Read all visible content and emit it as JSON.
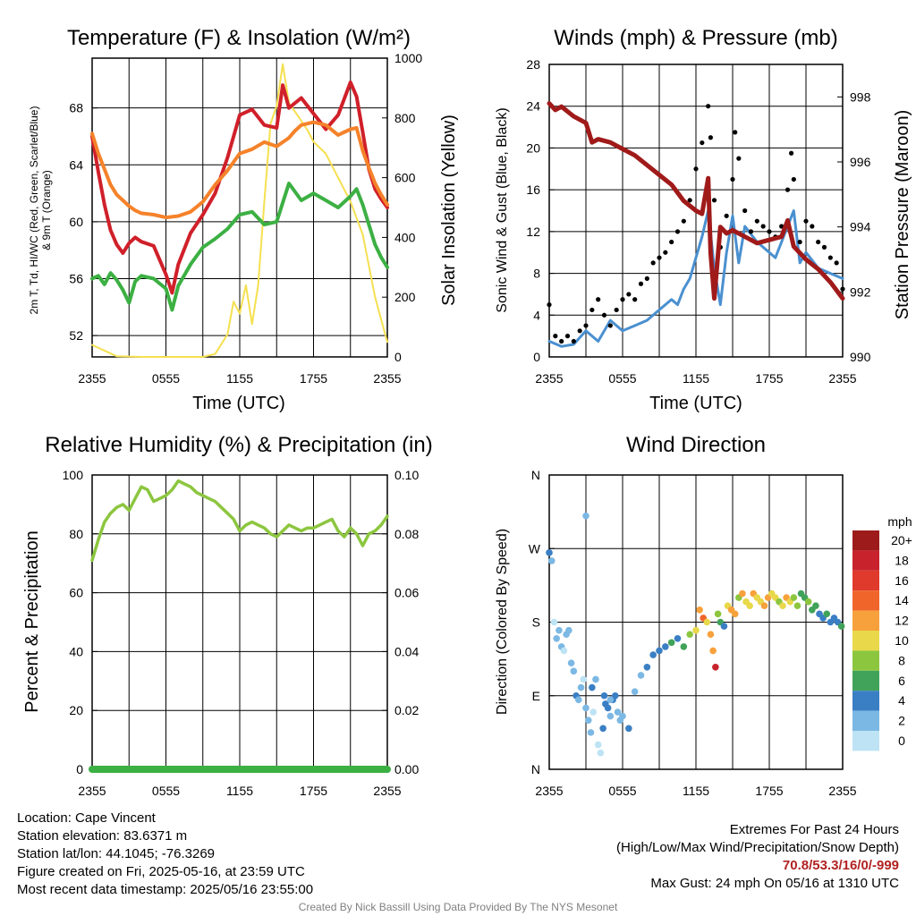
{
  "colors": {
    "red": "#d0202a",
    "orange": "#f5822a",
    "green": "#3cb043",
    "yellow": "#f5e050",
    "blue": "#4a90d0",
    "black": "#000000",
    "maroon": "#a01a1a",
    "rh": "#8cc63f",
    "precip": "#3cb043"
  },
  "chart_data": [
    {
      "type": "line",
      "title": "Temperature (F) & Insolation (W/m²)",
      "xlabel": "Time (UTC)",
      "ylabel": "2m T, Td, HI/WC (Red, Green, Scarlet/Blue) & 9m T (Orange)",
      "y2label": "Solar Insolation (Yellow)",
      "x_ticks": [
        "2355",
        "0555",
        "1155",
        "1755",
        "2355"
      ],
      "y_ticks": [
        "52",
        "56",
        "60",
        "64",
        "68"
      ],
      "y2_ticks": [
        "0",
        "200",
        "400",
        "600",
        "800",
        "1000"
      ],
      "ylim": [
        50.5,
        71.5
      ],
      "y2lim": [
        0,
        1000
      ],
      "xlim": [
        0,
        24
      ],
      "series": [
        {
          "color": "orange",
          "axis": "left",
          "x": [
            0,
            0.5,
            1,
            1.5,
            2,
            2.5,
            3,
            3.5,
            4,
            5,
            6,
            7,
            8,
            9,
            10,
            11,
            12,
            13,
            14,
            15,
            16,
            16.5,
            17,
            18,
            19,
            20,
            21,
            21.5,
            22,
            22.5,
            23,
            23.5,
            24
          ],
          "y": [
            66.2,
            64.8,
            63.7,
            62.6,
            61.9,
            61.5,
            61.1,
            60.8,
            60.6,
            60.5,
            60.3,
            60.4,
            60.7,
            61.4,
            62.6,
            63.6,
            64.8,
            65.1,
            65.6,
            65.3,
            65.9,
            66.4,
            66.8,
            67.0,
            66.8,
            66.1,
            66.5,
            66.6,
            65.0,
            63.8,
            62.7,
            61.9,
            61.2
          ]
        },
        {
          "color": "red",
          "axis": "left",
          "x": [
            0,
            0.5,
            1,
            1.5,
            2,
            2.5,
            3,
            3.5,
            4,
            5,
            6,
            6.5,
            7,
            8,
            9,
            10,
            11,
            12,
            13,
            14,
            15,
            15.5,
            16,
            17,
            18,
            19,
            20,
            21,
            21.5,
            22,
            22.5,
            23,
            23.5,
            24
          ],
          "y": [
            66.0,
            63.5,
            61.2,
            59.4,
            58.4,
            57.8,
            58.5,
            58.9,
            58.6,
            58.3,
            56.3,
            55.0,
            57.0,
            59.2,
            60.5,
            62.0,
            64.5,
            67.5,
            67.9,
            66.8,
            66.6,
            69.6,
            68.0,
            68.7,
            67.6,
            66.5,
            67.5,
            69.8,
            68.8,
            66.3,
            63.7,
            62.3,
            61.6,
            61.0
          ]
        },
        {
          "color": "green",
          "axis": "left",
          "x": [
            0,
            0.5,
            1,
            1.5,
            2,
            2.5,
            3,
            3.5,
            4,
            5,
            6,
            6.5,
            7,
            8,
            9,
            10,
            11,
            12,
            13,
            14,
            15,
            16,
            17,
            18,
            19,
            20,
            21,
            21.5,
            22,
            22.5,
            23,
            23.5,
            24
          ],
          "y": [
            56.0,
            56.2,
            55.6,
            56.4,
            55.9,
            55.2,
            54.3,
            55.8,
            56.2,
            56.0,
            55.3,
            53.8,
            55.5,
            57.0,
            58.2,
            58.8,
            59.5,
            60.5,
            60.7,
            59.8,
            60.0,
            62.7,
            61.5,
            62.0,
            61.5,
            61.0,
            61.8,
            62.3,
            61.2,
            59.8,
            58.4,
            57.5,
            56.8
          ]
        },
        {
          "color": "yellow",
          "axis": "right",
          "x": [
            0,
            2,
            4,
            6,
            7,
            8,
            9,
            10,
            11,
            11.5,
            12,
            12.5,
            13,
            13.5,
            14,
            14.5,
            15,
            15.5,
            16,
            16.5,
            17,
            17.5,
            18,
            19,
            20,
            21,
            22,
            23,
            24
          ],
          "y": [
            40,
            2,
            0,
            0,
            0,
            0,
            0,
            10,
            75,
            185,
            145,
            240,
            110,
            240,
            520,
            780,
            840,
            980,
            850,
            820,
            790,
            760,
            720,
            680,
            600,
            520,
            410,
            200,
            50
          ]
        }
      ]
    },
    {
      "type": "line",
      "title": "Winds (mph) & Pressure (mb)",
      "xlabel": "Time (UTC)",
      "ylabel": "Sonic Wind & Gust (Blue, Black)",
      "y2label": "Station Pressure (Maroon)",
      "x_ticks": [
        "2355",
        "0555",
        "1155",
        "1755",
        "2355"
      ],
      "y_ticks": [
        "0",
        "4",
        "8",
        "12",
        "16",
        "20",
        "24",
        "28"
      ],
      "y2_ticks": [
        "990",
        "992",
        "994",
        "996",
        "998"
      ],
      "ylim": [
        0,
        28
      ],
      "y2lim": [
        990,
        999
      ],
      "xlim": [
        0,
        24
      ],
      "series": [
        {
          "color": "blue",
          "axis": "left",
          "x": [
            0,
            1,
            2,
            3,
            4,
            5,
            6,
            7,
            8,
            9,
            10,
            10.5,
            11,
            11.5,
            12,
            12.5,
            13,
            13.5,
            14,
            14.5,
            15,
            15.5,
            16,
            17,
            18,
            18.5,
            19,
            20,
            20.5,
            21,
            22,
            23,
            24
          ],
          "y": [
            1.5,
            1.0,
            1.2,
            2.5,
            1.5,
            3.5,
            2.5,
            3.0,
            3.5,
            4.5,
            5.5,
            5.0,
            6.5,
            7.5,
            9.5,
            11.5,
            14.0,
            8.5,
            5.0,
            10.0,
            13.5,
            9.0,
            12.5,
            11.0,
            10.0,
            9.5,
            11.0,
            14.0,
            9.0,
            10.0,
            8.5,
            8.0,
            7.5
          ]
        },
        {
          "color": "black",
          "axis": "left",
          "style": "points",
          "x": [
            0,
            0.5,
            1,
            1.5,
            2,
            2.5,
            3,
            3.5,
            4,
            4.5,
            5,
            5.5,
            6,
            6.5,
            7,
            7.5,
            8,
            8.5,
            9,
            9.5,
            10,
            10.5,
            11,
            11.5,
            12,
            12.5,
            13,
            13.2,
            13.5,
            14,
            14.5,
            15,
            15.2,
            15.5,
            16,
            16.5,
            17,
            17.5,
            18,
            18.5,
            19,
            19.5,
            19.8,
            20,
            20.5,
            21,
            21.5,
            22,
            22.5,
            23,
            23.5,
            24
          ],
          "y": [
            5,
            2,
            1.5,
            2,
            1.5,
            2.5,
            3,
            4.5,
            5.5,
            4,
            3,
            4.5,
            5.5,
            6,
            5.5,
            7,
            7.5,
            9,
            9.5,
            10,
            11,
            12,
            13,
            15,
            18,
            20.5,
            24,
            21,
            15,
            10.5,
            13.5,
            17,
            21.5,
            19,
            14,
            12,
            13,
            12.5,
            12,
            11.5,
            12.5,
            16,
            19.5,
            17,
            11,
            13,
            12.5,
            11,
            10.5,
            9.5,
            9,
            6.5
          ]
        },
        {
          "color": "maroon",
          "axis": "right",
          "x": [
            0,
            0.5,
            1,
            2,
            3,
            3.5,
            4,
            5,
            6,
            7,
            8,
            9,
            10,
            11,
            12,
            12.5,
            13,
            13.2,
            13.5,
            14,
            14.5,
            15,
            16,
            17,
            18,
            19,
            19.5,
            20,
            21,
            22,
            23,
            24
          ],
          "y": [
            997.8,
            997.6,
            997.7,
            997.4,
            997.2,
            996.6,
            996.7,
            996.6,
            996.4,
            996.2,
            995.9,
            995.6,
            995.3,
            994.8,
            994.5,
            994.4,
            995.5,
            993.2,
            991.8,
            994.0,
            993.8,
            993.9,
            993.7,
            993.5,
            993.6,
            993.7,
            994.2,
            993.4,
            993.0,
            992.7,
            992.3,
            991.8
          ]
        }
      ]
    },
    {
      "type": "line",
      "title": "Relative Humidity (%) & Precipitation (in)",
      "ylabel": "Percent & Precipitation",
      "x_ticks": [
        "2355",
        "0555",
        "1155",
        "1755",
        "2355"
      ],
      "y_ticks": [
        "0",
        "20",
        "40",
        "60",
        "80",
        "100"
      ],
      "y2_ticks": [
        "0.00",
        "0.02",
        "0.04",
        "0.06",
        "0.08",
        "0.10"
      ],
      "ylim": [
        0,
        100
      ],
      "y2lim": [
        0,
        0.1
      ],
      "xlim": [
        0,
        24
      ],
      "series": [
        {
          "color": "rh",
          "axis": "left",
          "x": [
            0,
            0.5,
            1,
            1.5,
            2,
            2.5,
            3,
            3.5,
            4,
            4.5,
            5,
            5.5,
            6,
            6.5,
            7,
            7.5,
            8,
            8.5,
            9,
            9.5,
            10,
            10.5,
            11,
            11.5,
            12,
            12.5,
            13,
            13.5,
            14,
            14.5,
            15,
            15.5,
            16,
            16.5,
            17,
            17.5,
            18,
            18.5,
            19,
            19.5,
            20,
            20.5,
            21,
            21.5,
            22,
            22.5,
            23,
            23.5,
            24
          ],
          "y": [
            71,
            78,
            84,
            87,
            89,
            90,
            88,
            92,
            96,
            95,
            91,
            92,
            93,
            95,
            98,
            97,
            96,
            94,
            93,
            92,
            91,
            89,
            87,
            85,
            81,
            83,
            84,
            83,
            82,
            80,
            79,
            81,
            83,
            82,
            81,
            82,
            82,
            83,
            84,
            85,
            81,
            79,
            82,
            80,
            76,
            80,
            81,
            83,
            86
          ]
        },
        {
          "color": "precip",
          "axis": "right",
          "x": [
            0,
            24
          ],
          "y": [
            0,
            0
          ]
        }
      ]
    },
    {
      "type": "scatter",
      "title": "Wind Direction",
      "ylabel": "Direction (Colored By Speed)",
      "x_ticks": [
        "2355",
        "0555",
        "1155",
        "1755",
        "2355"
      ],
      "y_ticks": [
        "N",
        "E",
        "S",
        "W",
        "N"
      ],
      "ylim": [
        0,
        360
      ],
      "xlim": [
        0,
        24
      ],
      "legend_title": "mph",
      "legend_labels": [
        "20+",
        "18",
        "16",
        "14",
        "12",
        "10",
        "8",
        "6",
        "4",
        "2",
        "0"
      ],
      "legend_colors": [
        "#9e1b1b",
        "#c8232c",
        "#e03a2c",
        "#f0652a",
        "#f7a13c",
        "#e8d84a",
        "#8cc63f",
        "#41a35a",
        "#3a7fc4",
        "#7cb8e4",
        "#bde3f4"
      ],
      "legend_placement": "right",
      "x": [
        0,
        0.2,
        0.4,
        0.6,
        0.8,
        1.0,
        1.2,
        1.4,
        1.6,
        1.8,
        2.0,
        2.2,
        2.4,
        2.6,
        2.8,
        3.0,
        3.2,
        3.4,
        3.6,
        3.8,
        4.0,
        4.2,
        4.4,
        4.6,
        4.8,
        5.0,
        5.2,
        5.4,
        5.6,
        5.8,
        6.0,
        6.5,
        7.0,
        7.5,
        8.0,
        8.5,
        9.0,
        9.5,
        10.0,
        10.5,
        11.0,
        11.5,
        12.0,
        12.3,
        12.6,
        12.9,
        13.2,
        13.4,
        13.6,
        13.8,
        14.0,
        14.3,
        14.6,
        14.9,
        15.2,
        15.5,
        15.8,
        16.1,
        16.4,
        16.7,
        17.0,
        17.3,
        17.6,
        17.9,
        18.2,
        18.5,
        18.8,
        19.1,
        19.4,
        19.7,
        20.0,
        20.3,
        20.6,
        20.9,
        21.2,
        21.5,
        21.8,
        22.1,
        22.4,
        22.7,
        23.0,
        23.3,
        23.6,
        23.9,
        3.0,
        3.5,
        4.5,
        5.0
      ],
      "y": [
        265,
        255,
        180,
        160,
        170,
        150,
        145,
        165,
        170,
        130,
        120,
        90,
        85,
        100,
        110,
        75,
        60,
        45,
        70,
        110,
        30,
        20,
        50,
        80,
        75,
        65,
        85,
        90,
        70,
        60,
        65,
        50,
        95,
        115,
        125,
        140,
        145,
        150,
        155,
        160,
        150,
        165,
        170,
        195,
        185,
        180,
        165,
        145,
        125,
        190,
        180,
        175,
        200,
        195,
        190,
        210,
        215,
        205,
        200,
        215,
        210,
        205,
        200,
        210,
        215,
        210,
        205,
        200,
        210,
        205,
        210,
        200,
        215,
        210,
        205,
        195,
        200,
        190,
        185,
        190,
        180,
        185,
        180,
        175,
        310,
        100,
        90,
        85
      ],
      "speed": [
        4,
        2,
        0,
        1,
        2,
        1,
        0,
        1,
        1,
        2,
        1,
        3,
        2,
        1,
        0,
        1,
        2,
        1,
        0,
        1,
        0,
        0,
        3,
        4,
        3,
        2,
        4,
        3,
        2,
        2,
        1,
        3,
        2,
        2,
        3,
        4,
        4,
        4,
        5,
        4,
        5,
        7,
        10,
        12,
        14,
        10,
        12,
        11,
        18,
        8,
        6,
        4,
        10,
        12,
        11,
        8,
        12,
        9,
        10,
        12,
        10,
        9,
        11,
        12,
        10,
        9,
        8,
        10,
        11,
        9,
        7,
        8,
        6,
        5,
        7,
        6,
        5,
        4,
        4,
        5,
        3,
        4,
        4,
        5,
        1,
        4,
        3,
        2
      ]
    }
  ],
  "info_left": [
    "Location: Cape Vincent",
    "Station elevation: 83.6371 m",
    "Station lat/lon: 44.1045; -76.3269",
    "Figure created on Fri, 2025-05-16, at 23:59 UTC",
    "Most recent data timestamp: 2025/05/16 23:55:00"
  ],
  "extremes": {
    "title": "Extremes For Past 24 Hours",
    "subtitle": "(High/Low/Max Wind/Precipitation/Snow Depth)",
    "values": "70.8/53.3/16/0/-999",
    "gust": "Max Gust: 24 mph On 05/16 at 1310 UTC"
  },
  "credit": "Created By Nick Bassill Using Data Provided By The NYS Mesonet"
}
